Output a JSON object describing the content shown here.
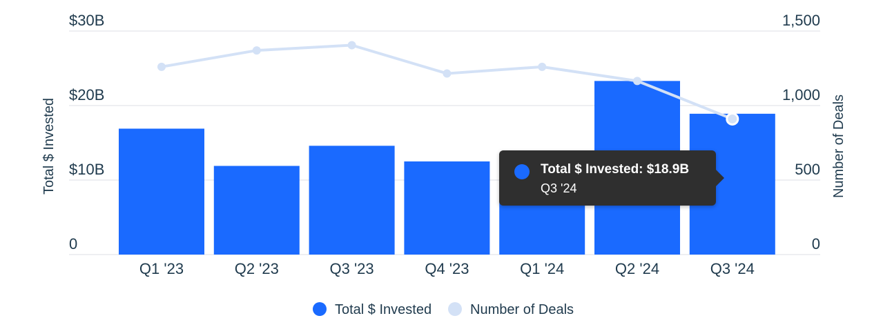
{
  "chart_data": {
    "type": "bar",
    "categories": [
      "Q1 '23",
      "Q2 '23",
      "Q3 '23",
      "Q4 '23",
      "Q1 '24",
      "Q2 '24",
      "Q3 '24"
    ],
    "series": [
      {
        "name": "Total $ Invested",
        "type": "bar",
        "axis": "left",
        "color": "#1a6aff",
        "values": [
          16.9,
          11.9,
          14.6,
          12.5,
          12.6,
          23.3,
          18.9
        ]
      },
      {
        "name": "Number of Deals",
        "type": "line",
        "axis": "right",
        "color": "#d3e1f6",
        "values": [
          1260,
          1370,
          1405,
          1215,
          1260,
          1165,
          910
        ]
      }
    ],
    "y_left": {
      "label": "Total $ Invested",
      "range": [
        0,
        30
      ],
      "ticks": [
        0,
        10,
        20,
        30
      ],
      "tick_labels": [
        "0",
        "$10B",
        "$20B",
        "$30B"
      ]
    },
    "y_right": {
      "label": "Number of Deals",
      "range": [
        0,
        1500
      ],
      "ticks": [
        0,
        500,
        1000,
        1500
      ],
      "tick_labels": [
        "0",
        "500",
        "1,000",
        "1,500"
      ]
    },
    "grid": true,
    "gridline_color": "#e8eaed",
    "legend": {
      "position": "bottom",
      "items": [
        {
          "label": "Total $ Invested",
          "color": "#1a6aff"
        },
        {
          "label": "Number of Deals",
          "color": "#d3e1f6"
        }
      ]
    },
    "tooltip": {
      "title": "Total $ Invested: $18.9B",
      "subtitle": "Q3 '24",
      "color": "#1a6aff"
    }
  }
}
